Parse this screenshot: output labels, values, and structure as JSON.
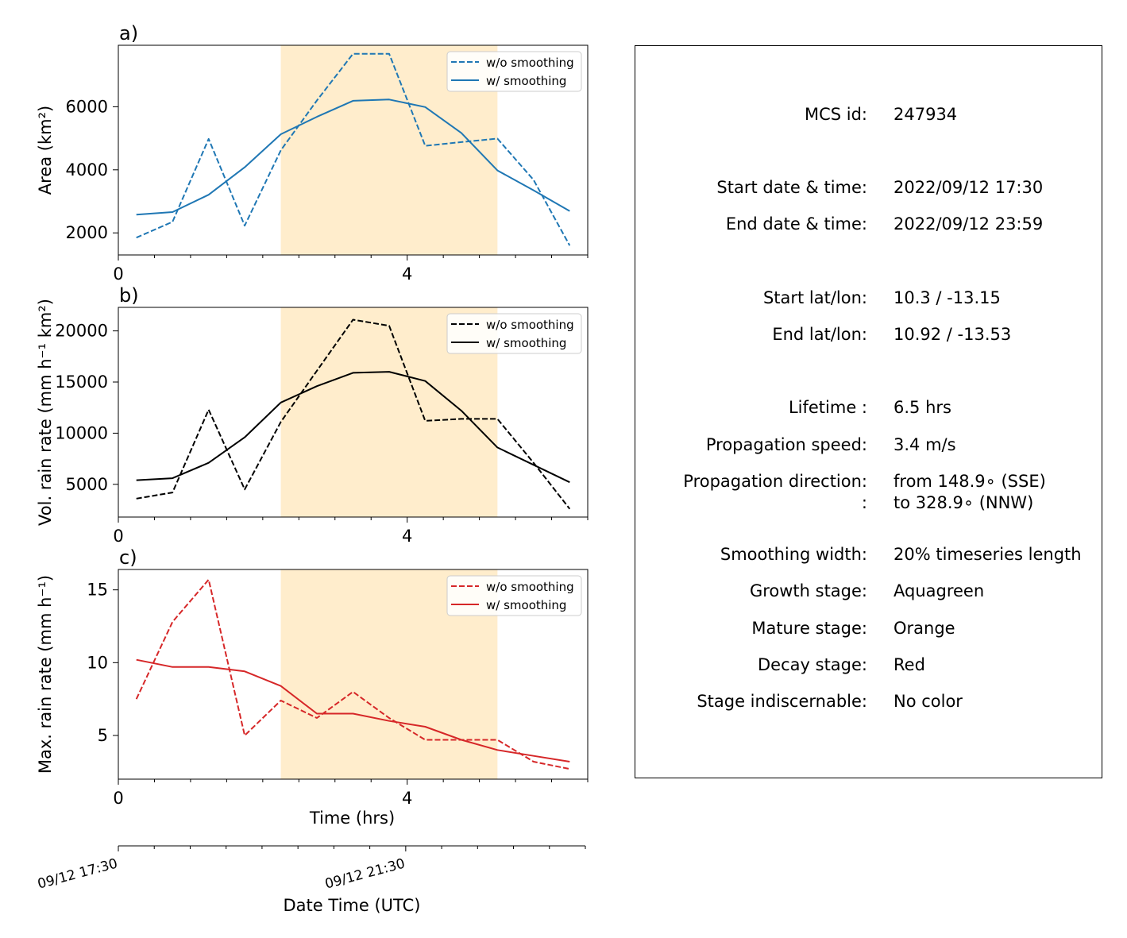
{
  "colors": {
    "area": "#1f77b4",
    "volrain": "#000000",
    "maxrain": "#d62728",
    "mature_shading": "#ffedcc"
  },
  "chart_data": [
    {
      "type": "line",
      "panel_label": "a)",
      "ylabel": "Area  (km²)",
      "xlim": [
        0,
        6.5
      ],
      "ylim": [
        1300,
        7950
      ],
      "yticks": [
        2000,
        4000,
        6000
      ],
      "xticks_major": [
        0,
        4
      ],
      "mature_span": [
        2.25,
        5.25
      ],
      "legend_position": "top-right",
      "x": [
        0.25,
        0.75,
        1.25,
        1.75,
        2.25,
        2.75,
        3.25,
        3.75,
        4.25,
        4.75,
        5.25,
        5.75,
        6.25
      ],
      "series": [
        {
          "name": "w/o smoothing",
          "style": "dashed",
          "values": [
            1850,
            2350,
            4980,
            2230,
            4620,
            6200,
            7680,
            7680,
            4760,
            4880,
            4990,
            3680,
            1600
          ]
        },
        {
          "name": "w/ smoothing",
          "style": "solid",
          "values": [
            2580,
            2660,
            3210,
            4080,
            5130,
            5680,
            6190,
            6230,
            5990,
            5170,
            3980,
            3350,
            2690
          ]
        }
      ]
    },
    {
      "type": "line",
      "panel_label": "b)",
      "ylabel": "Vol. rain rate (mm h⁻¹ km²)",
      "xlim": [
        0,
        6.5
      ],
      "ylim": [
        1800,
        22300
      ],
      "yticks": [
        5000,
        10000,
        15000,
        20000
      ],
      "xticks_major": [
        0,
        4
      ],
      "mature_span": [
        2.25,
        5.25
      ],
      "legend_position": "top-right",
      "x": [
        0.25,
        0.75,
        1.25,
        1.75,
        2.25,
        2.75,
        3.25,
        3.75,
        4.25,
        4.75,
        5.25,
        5.75,
        6.25
      ],
      "series": [
        {
          "name": "w/o smoothing",
          "style": "dashed",
          "values": [
            3600,
            4200,
            12300,
            4500,
            11100,
            16100,
            21100,
            20500,
            11200,
            11400,
            11400,
            7100,
            2600
          ]
        },
        {
          "name": "w/ smoothing",
          "style": "solid",
          "values": [
            5400,
            5600,
            7100,
            9600,
            13000,
            14600,
            15900,
            16000,
            15100,
            12200,
            8600,
            6900,
            5200
          ]
        }
      ]
    },
    {
      "type": "line",
      "panel_label": "c)",
      "ylabel": "Max. rain rate  (mm h⁻¹)",
      "xlabel": "Time (hrs)",
      "xlim": [
        0,
        6.5
      ],
      "ylim": [
        2.0,
        16.4
      ],
      "yticks": [
        5,
        10,
        15
      ],
      "xticks_major": [
        0,
        4
      ],
      "mature_span": [
        2.25,
        5.25
      ],
      "legend_position": "top-right",
      "x": [
        0.25,
        0.75,
        1.25,
        1.75,
        2.25,
        2.75,
        3.25,
        3.75,
        4.25,
        4.75,
        5.25,
        5.75,
        6.25
      ],
      "series": [
        {
          "name": "w/o smoothing",
          "style": "dashed",
          "values": [
            7.5,
            12.8,
            15.7,
            5.0,
            7.4,
            6.2,
            8.0,
            6.2,
            4.7,
            4.7,
            4.7,
            3.2,
            2.7
          ]
        },
        {
          "name": "w/ smoothing",
          "style": "solid",
          "values": [
            10.2,
            9.7,
            9.7,
            9.4,
            8.4,
            6.5,
            6.5,
            6.0,
            5.6,
            4.7,
            4.0,
            3.6,
            3.2
          ]
        }
      ]
    }
  ],
  "datetime_axis": {
    "xlabel": "Date Time (UTC)",
    "tick_labels": [
      {
        "hour": 0,
        "label": "09/12 17:30"
      },
      {
        "hour": 4,
        "label": "09/12 21:30"
      }
    ]
  },
  "info": {
    "rows": [
      {
        "label": "MCS id:",
        "value": "247934"
      },
      {
        "label": "Start date & time:",
        "value": "2022/09/12 17:30"
      },
      {
        "label": "End date & time:",
        "value": "2022/09/12 23:59"
      },
      {
        "label": "Start lat/lon:",
        "value": "10.3 / -13.15"
      },
      {
        "label": "End lat/lon:",
        "value": "10.92 / -13.53"
      },
      {
        "label": "Lifetime :",
        "value": "6.5 hrs"
      },
      {
        "label": "Propagation speed:",
        "value": "3.4 m/s"
      },
      {
        "label": "Propagation direction:",
        "value": "from 148.9∘ (SSE)"
      },
      {
        "label": ":",
        "value": "to   328.9∘ (NNW)"
      },
      {
        "label": "Smoothing width:",
        "value": "20% timeseries length"
      },
      {
        "label": "Growth stage:",
        "value": "Aquagreen"
      },
      {
        "label": "Mature stage:",
        "value": "Orange"
      },
      {
        "label": "Decay stage:",
        "value": "Red"
      },
      {
        "label": "Stage indiscernable:",
        "value": "No color"
      }
    ]
  }
}
